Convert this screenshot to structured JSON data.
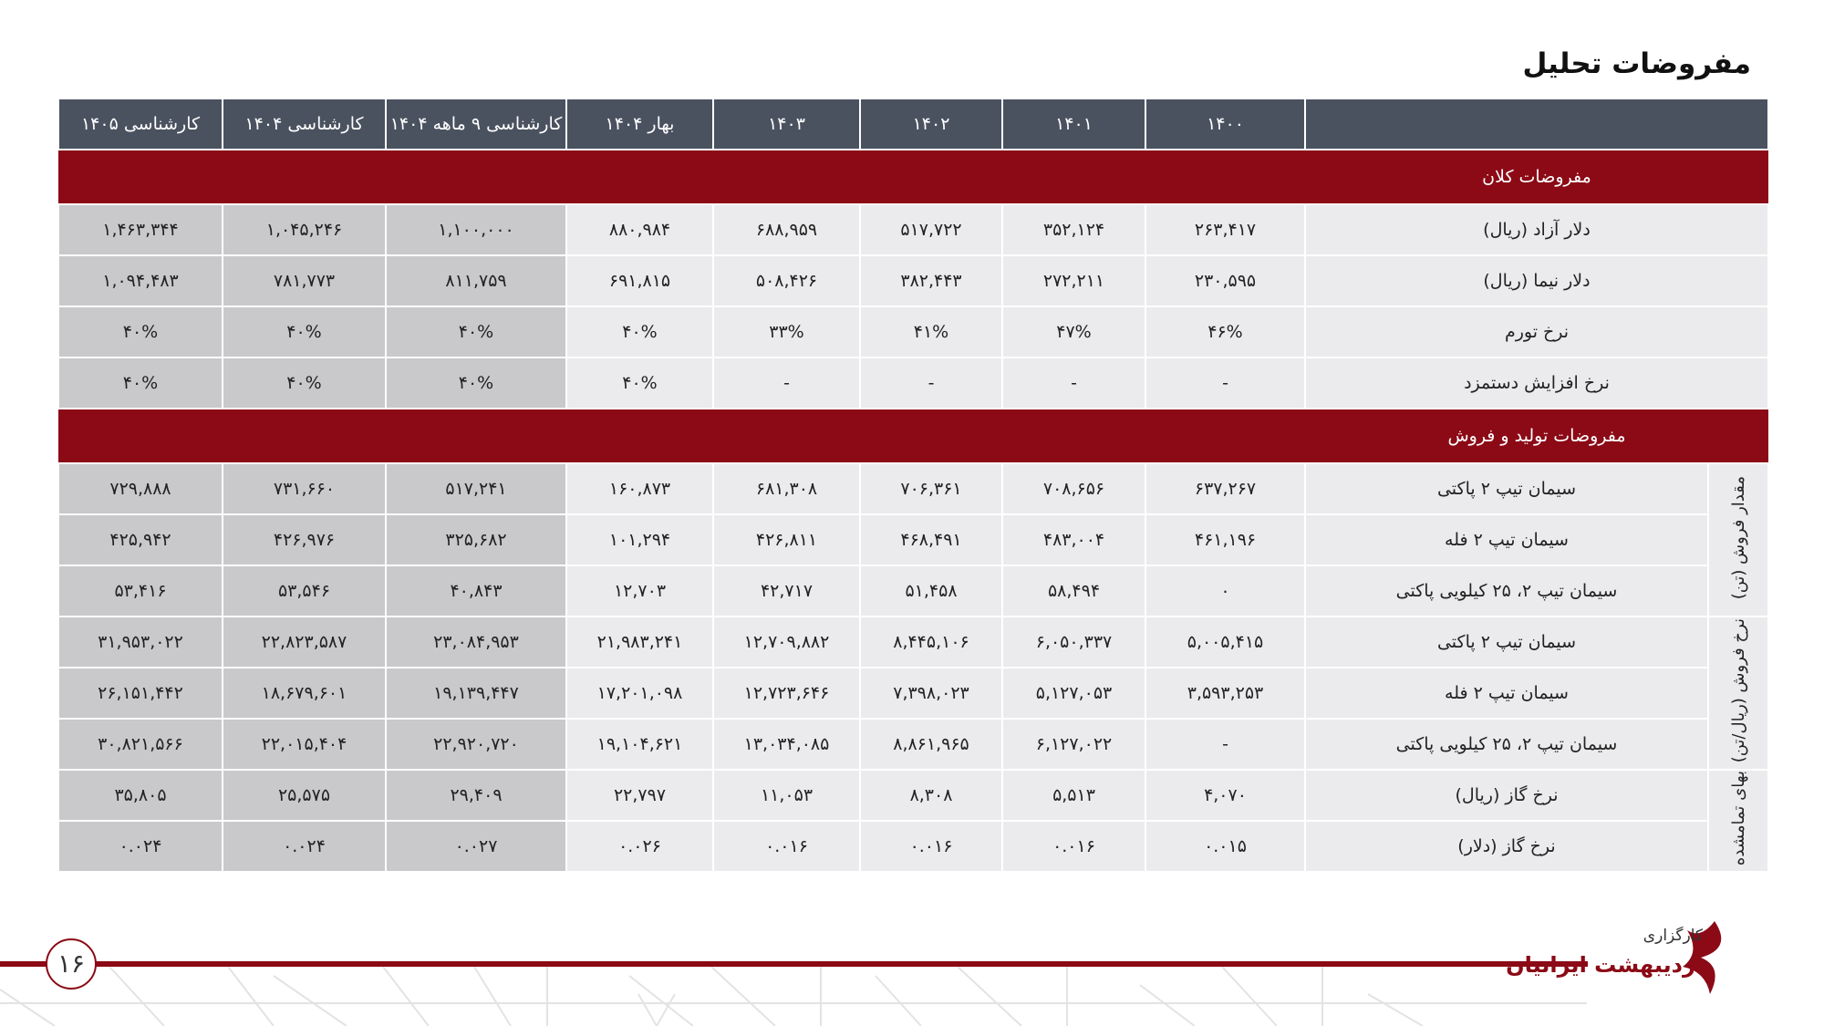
{
  "title": "مفروضات تحلیل",
  "table": {
    "header": [
      "۱۴۰۰",
      "۱۴۰۱",
      "۱۴۰۲",
      "۱۴۰۳",
      "بهار ۱۴۰۴",
      "کارشناسی ۹ ماهه ۱۴۰۴",
      "کارشناسی ۱۴۰۴",
      "کارشناسی ۱۴۰۵"
    ],
    "sections": [
      {
        "title": "مفروضات کلان",
        "groups": [
          {
            "rows": [
              {
                "label": "دلار آزاد (ریال)",
                "values": [
                  "۲۶۳,۴۱۷",
                  "۳۵۲,۱۲۴",
                  "۵۱۷,۷۲۲",
                  "۶۸۸,۹۵۹",
                  "۸۸۰,۹۸۴",
                  "۱,۱۰۰,۰۰۰",
                  "۱,۰۴۵,۲۴۶",
                  "۱,۴۶۳,۳۴۴"
                ]
              },
              {
                "label": "دلار نیما (ریال)",
                "values": [
                  "۲۳۰,۵۹۵",
                  "۲۷۲,۲۱۱",
                  "۳۸۲,۴۴۳",
                  "۵۰۸,۴۲۶",
                  "۶۹۱,۸۱۵",
                  "۸۱۱,۷۵۹",
                  "۷۸۱,۷۷۳",
                  "۱,۰۹۴,۴۸۳"
                ]
              },
              {
                "label": "نرخ تورم",
                "values": [
                  "۴۶%",
                  "۴۷%",
                  "۴۱%",
                  "۳۳%",
                  "۴۰%",
                  "۴۰%",
                  "۴۰%",
                  "۴۰%"
                ]
              },
              {
                "label": "نرخ افزایش دستمزد",
                "values": [
                  "-",
                  "-",
                  "-",
                  "-",
                  "۴۰%",
                  "۴۰%",
                  "۴۰%",
                  "۴۰%"
                ]
              }
            ]
          }
        ]
      },
      {
        "title": "مفروضات تولید و فروش",
        "groups": [
          {
            "label": "مقدار فروش (تن)",
            "rows": [
              {
                "label": "سیمان تیپ ۲ پاکتی",
                "values": [
                  "۶۳۷,۲۶۷",
                  "۷۰۸,۶۵۶",
                  "۷۰۶,۳۶۱",
                  "۶۸۱,۳۰۸",
                  "۱۶۰,۸۷۳",
                  "۵۱۷,۲۴۱",
                  "۷۳۱,۶۶۰",
                  "۷۲۹,۸۸۸"
                ]
              },
              {
                "label": "سیمان تیپ ۲ فله",
                "values": [
                  "۴۶۱,۱۹۶",
                  "۴۸۳,۰۰۴",
                  "۴۶۸,۴۹۱",
                  "۴۲۶,۸۱۱",
                  "۱۰۱,۲۹۴",
                  "۳۲۵,۶۸۲",
                  "۴۲۶,۹۷۶",
                  "۴۲۵,۹۴۲"
                ]
              },
              {
                "label": "سیمان تیپ ۲، ۲۵ کیلویی پاکتی",
                "values": [
                  "۰",
                  "۵۸,۴۹۴",
                  "۵۱,۴۵۸",
                  "۴۲,۷۱۷",
                  "۱۲,۷۰۳",
                  "۴۰,۸۴۳",
                  "۵۳,۵۴۶",
                  "۵۳,۴۱۶"
                ]
              }
            ]
          },
          {
            "label": "نرخ فروش (ریال/تن)",
            "rows": [
              {
                "label": "سیمان تیپ ۲ پاکتی",
                "values": [
                  "۵,۰۰۵,۴۱۵",
                  "۶,۰۵۰,۳۳۷",
                  "۸,۴۴۵,۱۰۶",
                  "۱۲,۷۰۹,۸۸۲",
                  "۲۱,۹۸۳,۲۴۱",
                  "۲۳,۰۸۴,۹۵۳",
                  "۲۲,۸۲۳,۵۸۷",
                  "۳۱,۹۵۳,۰۲۲"
                ]
              },
              {
                "label": "سیمان تیپ ۲ فله",
                "values": [
                  "۳,۵۹۳,۲۵۳",
                  "۵,۱۲۷,۰۵۳",
                  "۷,۳۹۸,۰۲۳",
                  "۱۲,۷۲۳,۶۴۶",
                  "۱۷,۲۰۱,۰۹۸",
                  "۱۹,۱۳۹,۴۴۷",
                  "۱۸,۶۷۹,۶۰۱",
                  "۲۶,۱۵۱,۴۴۲"
                ]
              },
              {
                "label": "سیمان تیپ ۲، ۲۵ کیلویی پاکتی",
                "values": [
                  "-",
                  "۶,۱۲۷,۰۲۲",
                  "۸,۸۶۱,۹۶۵",
                  "۱۳,۰۳۴,۰۸۵",
                  "۱۹,۱۰۴,۶۲۱",
                  "۲۲,۹۲۰,۷۲۰",
                  "۲۲,۰۱۵,۴۰۴",
                  "۳۰,۸۲۱,۵۶۶"
                ]
              }
            ]
          },
          {
            "label": "بهای تمامشده",
            "rows": [
              {
                "label": "نرخ گاز (ریال)",
                "values": [
                  "۴,۰۷۰",
                  "۵,۵۱۳",
                  "۸,۳۰۸",
                  "۱۱,۰۵۳",
                  "۲۲,۷۹۷",
                  "۲۹,۴۰۹",
                  "۲۵,۵۷۵",
                  "۳۵,۸۰۵"
                ]
              },
              {
                "label": "نرخ گاز (دلار)",
                "values": [
                  "۰.۰۱۵",
                  "۰.۰۱۶",
                  "۰.۰۱۶",
                  "۰.۰۱۶",
                  "۰.۰۲۶",
                  "۰.۰۲۷",
                  "۰.۰۲۴",
                  "۰.۰۲۴"
                ]
              }
            ]
          }
        ]
      }
    ]
  },
  "footer": {
    "page_number": "۱۶",
    "logo_top": "کارگزاری",
    "logo_name": "اردیبهشت ایرانیان"
  }
}
